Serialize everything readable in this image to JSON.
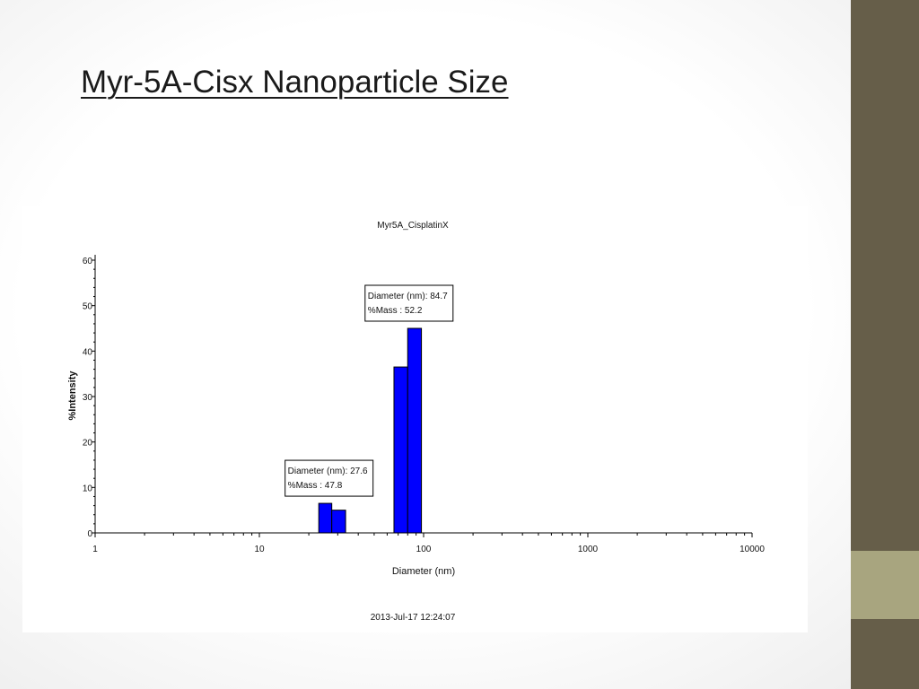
{
  "slide": {
    "title": "Myr-5A-Cisx Nanoparticle Size",
    "colors": {
      "sidebar": "#665e49",
      "sidebar_accent": "#a8a57f",
      "bar": "#0000ff"
    }
  },
  "chart_data": {
    "type": "bar",
    "title": "Myr5A_CisplatinX",
    "xlabel": "Diameter (nm)",
    "ylabel": "%Intensity",
    "x_scale": "log",
    "xlim": [
      1,
      10000
    ],
    "ylim": [
      0,
      60
    ],
    "x_ticks": [
      "1",
      "10",
      "100",
      "1000",
      "10000"
    ],
    "y_ticks": [
      "0",
      "10",
      "20",
      "30",
      "40",
      "50",
      "60"
    ],
    "bars": [
      {
        "x_start": 23,
        "x_end": 27.6,
        "value": 6.5
      },
      {
        "x_start": 27.6,
        "x_end": 33.5,
        "value": 5
      },
      {
        "x_start": 66,
        "x_end": 80,
        "value": 36.5
      },
      {
        "x_start": 80,
        "x_end": 97,
        "value": 45
      }
    ],
    "annotations": [
      {
        "line1": "Diameter (nm): 27.6",
        "line2": "%Mass : 47.8",
        "x": 27.6
      },
      {
        "line1": "Diameter (nm): 84.7",
        "line2": "%Mass : 52.2",
        "x": 84.7
      }
    ],
    "timestamp": "2013-Jul-17 12:24:07",
    "grid": false
  }
}
